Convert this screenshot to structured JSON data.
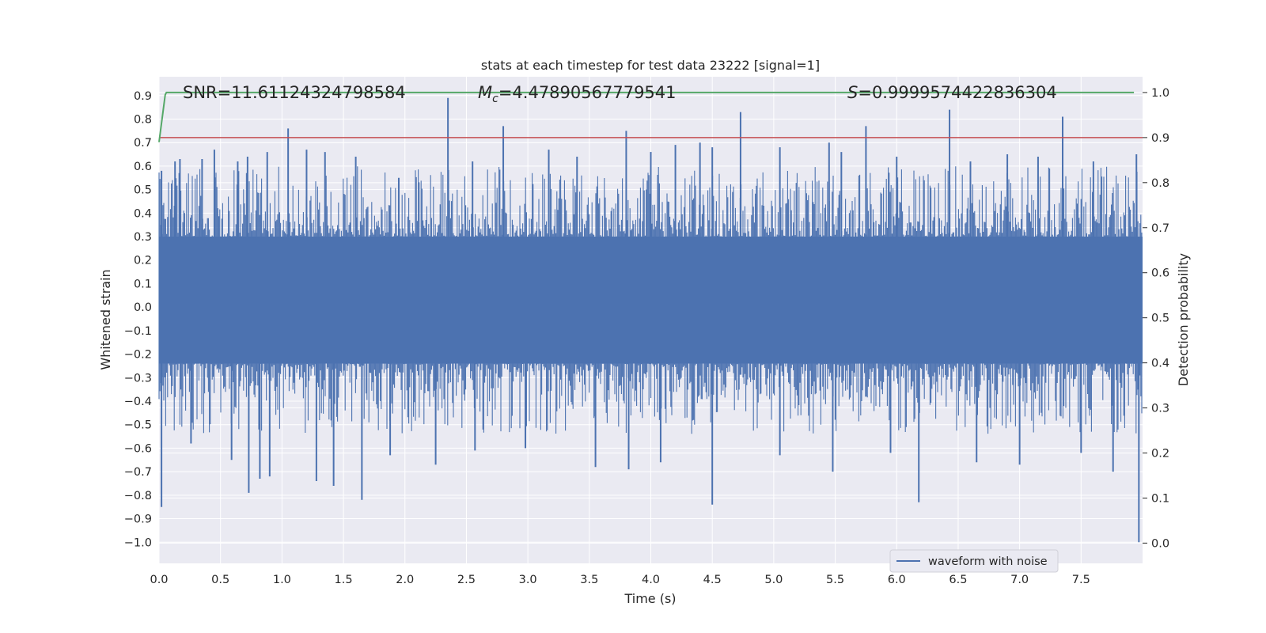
{
  "chart_data": {
    "type": "line",
    "title": "stats at each timestep for test data 23222 [signal=1]",
    "xlabel": "Time (s)",
    "ylabel": "Whitened strain",
    "y2label": "Detection probability",
    "xlim": [
      0.0,
      8.0
    ],
    "ylim": [
      -1.09,
      0.98
    ],
    "y2lim": [
      -0.045,
      1.035
    ],
    "xticks": [
      "0.0",
      "0.5",
      "1.0",
      "1.5",
      "2.0",
      "2.5",
      "3.0",
      "3.5",
      "4.0",
      "4.5",
      "5.0",
      "5.5",
      "6.0",
      "6.5",
      "7.0",
      "7.5"
    ],
    "yticks": [
      "0.9",
      "0.8",
      "0.7",
      "0.6",
      "0.5",
      "0.4",
      "0.3",
      "0.2",
      "0.1",
      "0.0",
      "−0.1",
      "−0.2",
      "−0.3",
      "−0.4",
      "−0.5",
      "−0.6",
      "−0.7",
      "−0.8",
      "−0.9",
      "−1.0"
    ],
    "y2ticks": [
      "1.0",
      "0.9",
      "0.8",
      "0.7",
      "0.6",
      "0.5",
      "0.4",
      "0.3",
      "0.2",
      "0.1",
      "0.0"
    ],
    "annotations": [
      {
        "prefix": "SNR",
        "value": "=11.61124324798584"
      },
      {
        "prefix": "M",
        "subscript": "c",
        "value": "=4.47890567779541"
      },
      {
        "prefix": "S",
        "value": "=0.9999574422836304"
      }
    ],
    "legend": {
      "label": "waveform with noise",
      "location": "lower-right"
    },
    "threshold": {
      "axis": "right",
      "value": 0.9,
      "color": "#c44e52"
    },
    "detection_probability": {
      "color": "#55a868",
      "x": [
        0.0,
        0.05,
        0.06,
        8.0
      ],
      "values": [
        0.89,
        0.995,
        1.0,
        1.0
      ]
    },
    "waveform": {
      "name": "waveform with noise",
      "color": "#4c72b0",
      "band": [
        -0.24,
        0.3
      ],
      "upper_spikes": [
        {
          "t": 0.02,
          "v": 0.58
        },
        {
          "t": 0.13,
          "v": 0.62
        },
        {
          "t": 0.17,
          "v": 0.63
        },
        {
          "t": 0.35,
          "v": 0.63
        },
        {
          "t": 0.45,
          "v": 0.67
        },
        {
          "t": 0.64,
          "v": 0.62
        },
        {
          "t": 0.72,
          "v": 0.64
        },
        {
          "t": 0.88,
          "v": 0.66
        },
        {
          "t": 1.05,
          "v": 0.76
        },
        {
          "t": 1.2,
          "v": 0.67
        },
        {
          "t": 1.35,
          "v": 0.66
        },
        {
          "t": 1.6,
          "v": 0.64
        },
        {
          "t": 1.95,
          "v": 0.55
        },
        {
          "t": 2.35,
          "v": 0.89
        },
        {
          "t": 2.55,
          "v": 0.62
        },
        {
          "t": 2.8,
          "v": 0.77
        },
        {
          "t": 3.17,
          "v": 0.67
        },
        {
          "t": 3.4,
          "v": 0.64
        },
        {
          "t": 3.8,
          "v": 0.75
        },
        {
          "t": 4.0,
          "v": 0.66
        },
        {
          "t": 4.2,
          "v": 0.69
        },
        {
          "t": 4.4,
          "v": 0.7
        },
        {
          "t": 4.5,
          "v": 0.68
        },
        {
          "t": 4.73,
          "v": 0.83
        },
        {
          "t": 5.05,
          "v": 0.68
        },
        {
          "t": 5.45,
          "v": 0.7
        },
        {
          "t": 5.55,
          "v": 0.66
        },
        {
          "t": 5.75,
          "v": 0.77
        },
        {
          "t": 6.0,
          "v": 0.64
        },
        {
          "t": 6.43,
          "v": 0.84
        },
        {
          "t": 6.6,
          "v": 0.62
        },
        {
          "t": 6.9,
          "v": 0.65
        },
        {
          "t": 7.15,
          "v": 0.64
        },
        {
          "t": 7.35,
          "v": 0.81
        },
        {
          "t": 7.6,
          "v": 0.62
        },
        {
          "t": 7.95,
          "v": 0.65
        }
      ],
      "lower_spikes": [
        {
          "t": 0.02,
          "v": -0.85
        },
        {
          "t": 0.26,
          "v": -0.58
        },
        {
          "t": 0.59,
          "v": -0.65
        },
        {
          "t": 0.73,
          "v": -0.79
        },
        {
          "t": 0.82,
          "v": -0.73
        },
        {
          "t": 0.9,
          "v": -0.72
        },
        {
          "t": 1.28,
          "v": -0.74
        },
        {
          "t": 1.42,
          "v": -0.76
        },
        {
          "t": 1.65,
          "v": -0.82
        },
        {
          "t": 1.88,
          "v": -0.63
        },
        {
          "t": 2.25,
          "v": -0.67
        },
        {
          "t": 2.57,
          "v": -0.61
        },
        {
          "t": 2.98,
          "v": -0.6
        },
        {
          "t": 3.55,
          "v": -0.68
        },
        {
          "t": 3.82,
          "v": -0.69
        },
        {
          "t": 4.08,
          "v": -0.66
        },
        {
          "t": 4.5,
          "v": -0.84
        },
        {
          "t": 5.05,
          "v": -0.63
        },
        {
          "t": 5.48,
          "v": -0.7
        },
        {
          "t": 5.95,
          "v": -0.62
        },
        {
          "t": 6.18,
          "v": -0.83
        },
        {
          "t": 6.65,
          "v": -0.66
        },
        {
          "t": 7.0,
          "v": -0.67
        },
        {
          "t": 7.5,
          "v": -0.62
        },
        {
          "t": 7.76,
          "v": -0.7
        },
        {
          "t": 7.97,
          "v": -1.0
        }
      ]
    }
  }
}
